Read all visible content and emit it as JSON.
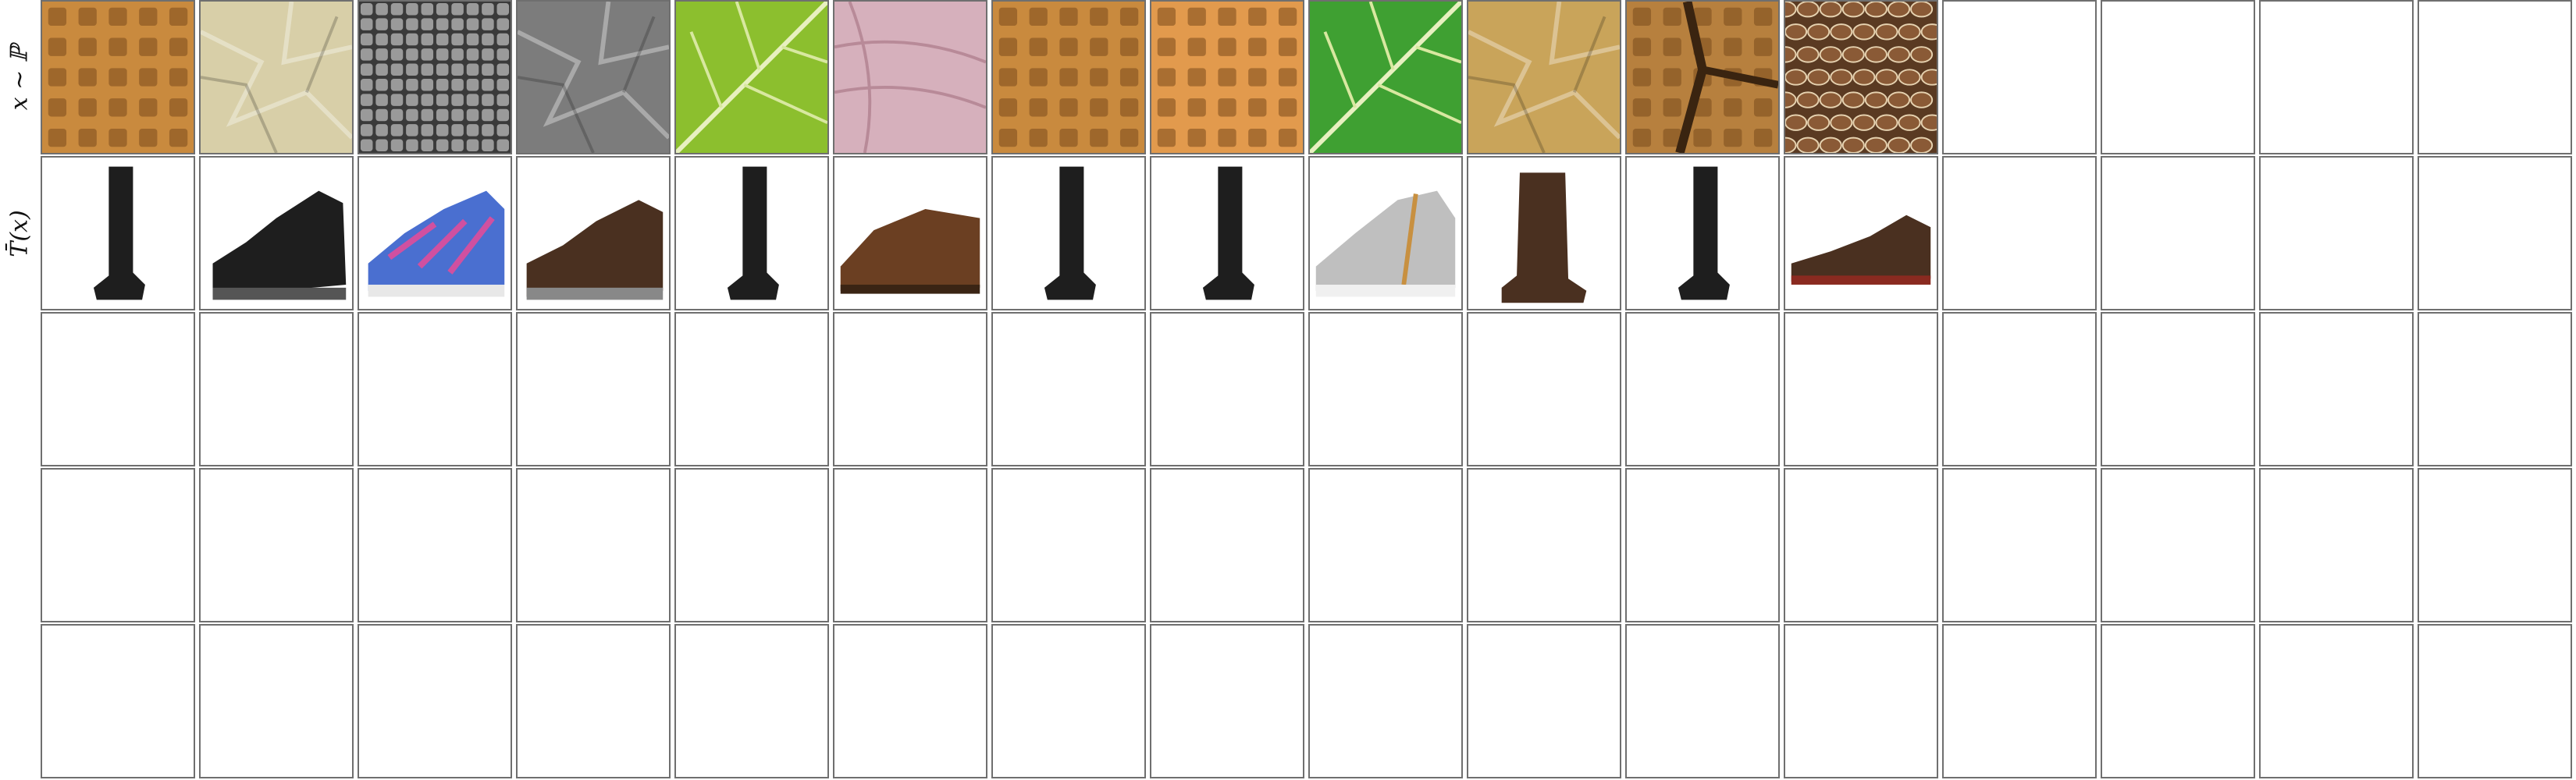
{
  "grid": {
    "columns": 16,
    "rows": [
      {
        "label": "x ∼ ℙ",
        "cells": [
          "waffle",
          "paper-beige",
          "metal-mesh",
          "crumpled-paper-gray",
          "leaf-yellow-green",
          "pink-fabric",
          "waffle",
          "waffle-orange",
          "leaf-green",
          "gold-foil",
          "waffle-crack",
          "woven-brown",
          "empty",
          "empty",
          "empty",
          "empty"
        ]
      },
      {
        "label": "T̄(x)",
        "cells": [
          "tall-black-boot",
          "black-work-shoe",
          "colorful-sneaker",
          "dark-brown-shoe",
          "tall-black-boot",
          "brown-loafer",
          "tall-black-boot",
          "tall-black-boot",
          "gray-sneaker",
          "brown-ankle-boot",
          "tall-black-boot",
          "low-brown-shoe",
          "empty",
          "empty",
          "empty",
          "empty"
        ]
      },
      {
        "label": "",
        "cells": [
          "empty",
          "empty",
          "empty",
          "empty",
          "empty",
          "empty",
          "empty",
          "empty",
          "empty",
          "empty",
          "empty",
          "empty",
          "empty",
          "empty",
          "empty",
          "empty"
        ]
      },
      {
        "label": "",
        "cells": [
          "empty",
          "empty",
          "empty",
          "empty",
          "empty",
          "empty",
          "empty",
          "empty",
          "empty",
          "empty",
          "empty",
          "empty",
          "empty",
          "empty",
          "empty",
          "empty"
        ]
      },
      {
        "label": "",
        "cells": [
          "empty",
          "empty",
          "empty",
          "empty",
          "empty",
          "empty",
          "empty",
          "empty",
          "empty",
          "empty",
          "empty",
          "empty",
          "empty",
          "empty",
          "empty",
          "empty"
        ]
      }
    ]
  },
  "colors": {
    "waffle": "#c98a3e",
    "paper-beige": "#d8cfa8",
    "metal-mesh": "#6b6b6b",
    "crumpled-paper-gray": "#7c7c7c",
    "leaf-yellow-green": "#8cbf2e",
    "pink-fabric": "#d6b0bc",
    "waffle-orange": "#e29a4d",
    "leaf-green": "#3fa032",
    "gold-foil": "#c9a45a",
    "waffle-crack": "#b7803e",
    "woven-brown": "#8a5a36",
    "black": "#1e1e1e",
    "dark-brown": "#4a3020",
    "brown": "#6b3f22",
    "gray": "#bfbfbf",
    "blue": "#4a6fd0"
  }
}
